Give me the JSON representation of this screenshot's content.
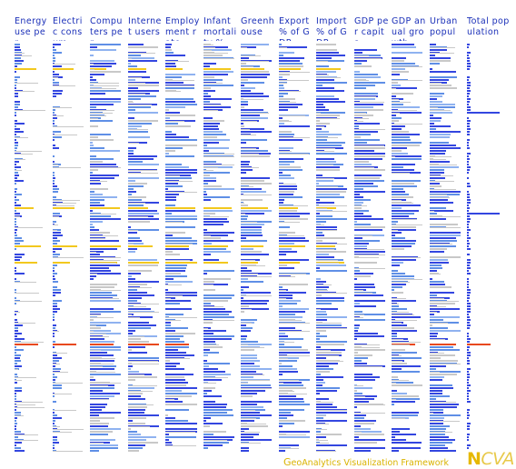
{
  "columns": [
    {
      "id": "energy",
      "header": "Energy use per"
    },
    {
      "id": "electric",
      "header": "Electric consum"
    },
    {
      "id": "computers",
      "header": "Computers per"
    },
    {
      "id": "internet",
      "header": "Internet users"
    },
    {
      "id": "employment",
      "header": "Employment rate"
    },
    {
      "id": "infant",
      "header": "Infant mortality %"
    },
    {
      "id": "greenhouse",
      "header": "Greenhouse"
    },
    {
      "id": "export",
      "header": "Export % of GDP"
    },
    {
      "id": "import",
      "header": "Import % of GDP"
    },
    {
      "id": "gdppc",
      "header": "GDP per capita"
    },
    {
      "id": "gdpgrowth",
      "header": "GDP anual growth"
    },
    {
      "id": "urban",
      "header": "Urban popul"
    },
    {
      "id": "total",
      "header": "Total population"
    }
  ],
  "footer": {
    "brand_initial": "G",
    "brand_text": "eoAnalytics Visualization Framework",
    "logo_initial": "N",
    "logo_text": "CVA"
  },
  "colors": {
    "header": "#1a2fb8",
    "bar_primary": "#3346e0",
    "bar_secondary": "#5f8fe6",
    "bar_light": "#8fb2f0",
    "bar_muted": "#c8c8c8",
    "highlight_yellow": "#f2c81e",
    "highlight_red": "#e8481e"
  }
}
